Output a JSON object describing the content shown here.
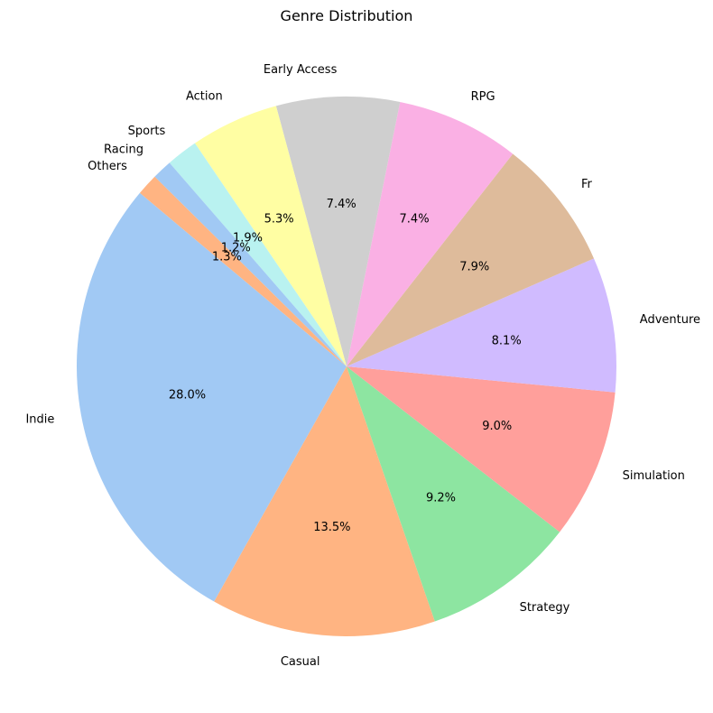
{
  "chart_data": {
    "type": "pie",
    "title": "Genre Distribution",
    "start_angle_deg": 140,
    "direction": "counterclockwise",
    "categories": [
      "Indie",
      "Casual",
      "Strategy",
      "Simulation",
      "Adventure",
      "Fr",
      "RPG",
      "Early Access",
      "Action",
      "Sports",
      "Racing",
      "Others"
    ],
    "values": [
      28.0,
      13.5,
      9.2,
      9.0,
      8.1,
      7.9,
      7.4,
      7.4,
      5.3,
      1.9,
      1.2,
      1.3
    ],
    "value_labels": [
      "28.0%",
      "13.5%",
      "9.2%",
      "9.0%",
      "8.1%",
      "7.9%",
      "7.4%",
      "7.4%",
      "5.3%",
      "1.9%",
      "1.2%",
      "1.3%"
    ],
    "colors": [
      "#a1c9f4",
      "#ffb482",
      "#8de5a1",
      "#ff9f9b",
      "#d0bbff",
      "#debb9b",
      "#fab0e4",
      "#cfcfcf",
      "#fffea3",
      "#b9f2f0",
      "#a1c9f4",
      "#ffb482"
    ],
    "legend": "none"
  }
}
